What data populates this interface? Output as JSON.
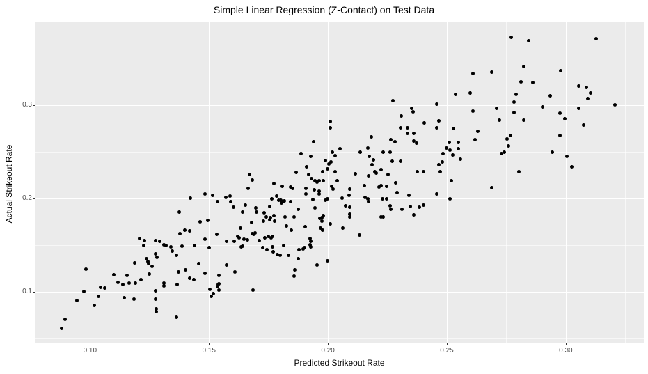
{
  "title": "Simple Linear Regression (Z-Contact) on Test Data",
  "colors": {
    "panel_background": "#EBEBEB",
    "grid_major": "#FFFFFF",
    "grid_minor": "#FFFFFF",
    "point": "#000000",
    "tick_text": "#4D4D4D",
    "axis_text": "#000000"
  },
  "chart_data": {
    "type": "scatter",
    "title": "Simple Linear Regression (Z-Contact) on Test Data",
    "xlabel": "Predicted Strikeout Rate",
    "ylabel": "Actual Strikeout Rate",
    "xlim": [
      0.0768,
      0.3328
    ],
    "ylim": [
      0.0448,
      0.3888
    ],
    "grid": true,
    "legend_position": "none",
    "x_major_ticks": [
      0.1,
      0.15,
      0.2,
      0.25,
      0.3
    ],
    "x_tick_labels": [
      "0.10",
      "0.15",
      "0.20",
      "0.25",
      "0.30"
    ],
    "x_minor_ticks": [
      0.125,
      0.175,
      0.225,
      0.275,
      0.325
    ],
    "y_major_ticks": [
      0.1,
      0.2,
      0.3
    ],
    "y_tick_labels": [
      "0.1",
      "0.2",
      "0.3"
    ],
    "y_minor_ticks": [
      0.05,
      0.15,
      0.25,
      0.35
    ],
    "points": [
      [
        0.0882,
        0.0612
      ],
      [
        0.0894,
        0.0707
      ],
      [
        0.0946,
        0.0905
      ],
      [
        0.0975,
        0.1005
      ],
      [
        0.0982,
        0.1246
      ],
      [
        0.1018,
        0.0851
      ],
      [
        0.1035,
        0.0948
      ],
      [
        0.1045,
        0.1047
      ],
      [
        0.1063,
        0.1043
      ],
      [
        0.1099,
        0.1184
      ],
      [
        0.1118,
        0.1099
      ],
      [
        0.1138,
        0.108
      ],
      [
        0.1145,
        0.0938
      ],
      [
        0.1155,
        0.1174
      ],
      [
        0.1164,
        0.1092
      ],
      [
        0.1187,
        0.1311
      ],
      [
        0.119,
        0.1092
      ],
      [
        0.1185,
        0.0925
      ],
      [
        0.1209,
        0.1572
      ],
      [
        0.1213,
        0.1129
      ],
      [
        0.1229,
        0.1547
      ],
      [
        0.1226,
        0.1497
      ],
      [
        0.1238,
        0.1358
      ],
      [
        0.1242,
        0.1328
      ],
      [
        0.1247,
        0.1299
      ],
      [
        0.1248,
        0.1192
      ],
      [
        0.126,
        0.1274
      ],
      [
        0.1277,
        0.1545
      ],
      [
        0.1277,
        0.141
      ],
      [
        0.1281,
        0.1373
      ],
      [
        0.1294,
        0.154
      ],
      [
        0.131,
        0.1507
      ],
      [
        0.131,
        0.1092
      ],
      [
        0.131,
        0.106
      ],
      [
        0.1277,
        0.101
      ],
      [
        0.1277,
        0.0925
      ],
      [
        0.1279,
        0.0819
      ],
      [
        0.1279,
        0.0786
      ],
      [
        0.132,
        0.1497
      ],
      [
        0.1341,
        0.1482
      ],
      [
        0.1346,
        0.1433
      ],
      [
        0.1362,
        0.1395
      ],
      [
        0.1365,
        0.108
      ],
      [
        0.1362,
        0.0731
      ],
      [
        0.1375,
        0.1856
      ],
      [
        0.1379,
        0.1627
      ],
      [
        0.1372,
        0.1216
      ],
      [
        0.1387,
        0.149
      ],
      [
        0.1398,
        0.1664
      ],
      [
        0.1401,
        0.1236
      ],
      [
        0.1421,
        0.2007
      ],
      [
        0.1418,
        0.1651
      ],
      [
        0.1419,
        0.1147
      ],
      [
        0.1437,
        0.1134
      ],
      [
        0.144,
        0.1497
      ],
      [
        0.1457,
        0.1303
      ],
      [
        0.1463,
        0.1751
      ],
      [
        0.1484,
        0.2045
      ],
      [
        0.1482,
        0.1565
      ],
      [
        0.1484,
        0.1196
      ],
      [
        0.1496,
        0.1763
      ],
      [
        0.1502,
        0.1472
      ],
      [
        0.1504,
        0.103
      ],
      [
        0.1515,
        0.2032
      ],
      [
        0.1511,
        0.0948
      ],
      [
        0.1518,
        0.098
      ],
      [
        0.1535,
        0.197
      ],
      [
        0.1533,
        0.1619
      ],
      [
        0.1536,
        0.1054
      ],
      [
        0.1541,
        0.1084
      ],
      [
        0.1541,
        0.1179
      ],
      [
        0.1538,
        0.1075
      ],
      [
        0.1543,
        0.1022
      ],
      [
        0.157,
        0.2013
      ],
      [
        0.1574,
        0.154
      ],
      [
        0.1575,
        0.1291
      ],
      [
        0.159,
        0.2025
      ],
      [
        0.1593,
        0.1968
      ],
      [
        0.1603,
        0.1905
      ],
      [
        0.1606,
        0.154
      ],
      [
        0.1609,
        0.1216
      ],
      [
        0.1621,
        0.1597
      ],
      [
        0.1626,
        0.1577
      ],
      [
        0.1633,
        0.1681
      ],
      [
        0.1635,
        0.1482
      ],
      [
        0.164,
        0.1851
      ],
      [
        0.164,
        0.149
      ],
      [
        0.1664,
        0.2112
      ],
      [
        0.1684,
        0.1017
      ],
      [
        0.1652,
        0.193
      ],
      [
        0.1648,
        0.1565
      ],
      [
        0.1661,
        0.1557
      ],
      [
        0.1679,
        0.1746
      ],
      [
        0.1681,
        0.1627
      ],
      [
        0.1689,
        0.1614
      ],
      [
        0.1694,
        0.1632
      ],
      [
        0.1696,
        0.1901
      ],
      [
        0.1701,
        0.1856
      ],
      [
        0.1713,
        0.1552
      ],
      [
        0.1726,
        0.1472
      ],
      [
        0.173,
        0.1756
      ],
      [
        0.1733,
        0.1846
      ],
      [
        0.1736,
        0.1582
      ],
      [
        0.1745,
        0.1453
      ],
      [
        0.1749,
        0.159
      ],
      [
        0.1755,
        0.1913
      ],
      [
        0.1755,
        0.1771
      ],
      [
        0.1759,
        0.1796
      ],
      [
        0.1762,
        0.1577
      ],
      [
        0.1767,
        0.159
      ],
      [
        0.1765,
        0.2
      ],
      [
        0.1767,
        0.1482
      ],
      [
        0.1769,
        0.1427
      ],
      [
        0.1772,
        0.1821
      ],
      [
        0.1777,
        0.1756
      ],
      [
        0.1784,
        0.2025
      ],
      [
        0.1788,
        0.1397
      ],
      [
        0.1794,
        0.1985
      ],
      [
        0.1801,
        0.198
      ],
      [
        0.1806,
        0.1955
      ],
      [
        0.1811,
        0.197
      ],
      [
        0.1816,
        0.1976
      ],
      [
        0.1798,
        0.139
      ],
      [
        0.1813,
        0.1497
      ],
      [
        0.182,
        0.1806
      ],
      [
        0.1827,
        0.1707
      ],
      [
        0.1835,
        0.139
      ],
      [
        0.1843,
        0.197
      ],
      [
        0.1847,
        0.1657
      ],
      [
        0.1857,
        0.1801
      ],
      [
        0.186,
        0.1234
      ],
      [
        0.1857,
        0.1166
      ],
      [
        0.1876,
        0.1888
      ],
      [
        0.1876,
        0.1358
      ],
      [
        0.1879,
        0.1448
      ],
      [
        0.1896,
        0.1457
      ],
      [
        0.1903,
        0.1472
      ],
      [
        0.1906,
        0.1701
      ],
      [
        0.1908,
        0.2045
      ],
      [
        0.1925,
        0.1572
      ],
      [
        0.1928,
        0.154
      ],
      [
        0.1925,
        0.1507
      ],
      [
        0.1928,
        0.1478
      ],
      [
        0.1938,
        0.1988
      ],
      [
        0.1947,
        0.1901
      ],
      [
        0.1954,
        0.1291
      ],
      [
        0.1962,
        0.2045
      ],
      [
        0.1967,
        0.1789
      ],
      [
        0.1974,
        0.1796
      ],
      [
        0.197,
        0.1681
      ],
      [
        0.1977,
        0.1664
      ],
      [
        0.1974,
        0.1756
      ],
      [
        0.1989,
        0.198
      ],
      [
        0.1999,
        0.2
      ],
      [
        0.1999,
        0.1333
      ],
      [
        0.2009,
        0.1731
      ],
      [
        0.206,
        0.2005
      ],
      [
        0.2062,
        0.1681
      ],
      [
        0.2074,
        0.192
      ],
      [
        0.2089,
        0.2037
      ],
      [
        0.2091,
        0.1905
      ],
      [
        0.2091,
        0.183
      ],
      [
        0.2091,
        0.1801
      ],
      [
        0.2133,
        0.1607
      ],
      [
        0.2157,
        0.2013
      ],
      [
        0.2169,
        0.1995
      ],
      [
        0.2172,
        0.197
      ],
      [
        0.223,
        0.2
      ],
      [
        0.2223,
        0.1806
      ],
      [
        0.2233,
        0.1801
      ],
      [
        0.2247,
        0.1995
      ],
      [
        0.2263,
        0.192
      ],
      [
        0.2264,
        0.1888
      ],
      [
        0.2292,
        0.2062
      ],
      [
        0.2311,
        0.1888
      ],
      [
        0.234,
        0.2037
      ],
      [
        0.2345,
        0.1913
      ],
      [
        0.236,
        0.1826
      ],
      [
        0.2384,
        0.1905
      ],
      [
        0.2403,
        0.193
      ],
      [
        0.2458,
        0.2045
      ],
      [
        0.2513,
        0.2
      ],
      [
        0.1843,
        0.2125
      ],
      [
        0.1909,
        0.2112
      ],
      [
        0.2016,
        0.213
      ],
      [
        0.2021,
        0.2104
      ],
      [
        0.2091,
        0.2104
      ],
      [
        0.2152,
        0.2137
      ],
      [
        0.2214,
        0.2125
      ],
      [
        0.2223,
        0.2137
      ],
      [
        0.2247,
        0.213
      ],
      [
        0.1851,
        0.2107
      ],
      [
        0.1944,
        0.209
      ],
      [
        0.1963,
        0.2082
      ],
      [
        0.1982,
        0.1816
      ],
      [
        0.1742,
        0.1806
      ],
      [
        0.2689,
        0.2119
      ],
      [
        0.1672,
        0.2261
      ],
      [
        0.1683,
        0.2199
      ],
      [
        0.1772,
        0.2162
      ],
      [
        0.1807,
        0.2134
      ],
      [
        0.1867,
        0.2281
      ],
      [
        0.1888,
        0.2485
      ],
      [
        0.1911,
        0.2341
      ],
      [
        0.192,
        0.2261
      ],
      [
        0.1928,
        0.2453
      ],
      [
        0.1931,
        0.2216
      ],
      [
        0.1941,
        0.261
      ],
      [
        0.1947,
        0.2187
      ],
      [
        0.1954,
        0.2174
      ],
      [
        0.1962,
        0.2192
      ],
      [
        0.1977,
        0.2291
      ],
      [
        0.1982,
        0.2187
      ],
      [
        0.1989,
        0.2405
      ],
      [
        0.1999,
        0.2319
      ],
      [
        0.2003,
        0.2366
      ],
      [
        0.2009,
        0.2828
      ],
      [
        0.2011,
        0.2754
      ],
      [
        0.2013,
        0.2393
      ],
      [
        0.2019,
        0.2493
      ],
      [
        0.2029,
        0.2461
      ],
      [
        0.203,
        0.2286
      ],
      [
        0.2038,
        0.2192
      ],
      [
        0.2052,
        0.2535
      ],
      [
        0.2116,
        0.2266
      ],
      [
        0.2135,
        0.2498
      ],
      [
        0.2167,
        0.254
      ],
      [
        0.2172,
        0.2241
      ],
      [
        0.2175,
        0.2448
      ],
      [
        0.2182,
        0.2659
      ],
      [
        0.2186,
        0.236
      ],
      [
        0.2191,
        0.2415
      ],
      [
        0.2198,
        0.2286
      ],
      [
        0.2204,
        0.2269
      ],
      [
        0.2223,
        0.2311
      ],
      [
        0.2233,
        0.2493
      ],
      [
        0.2252,
        0.2261
      ],
      [
        0.2263,
        0.2498
      ],
      [
        0.2264,
        0.2629
      ],
      [
        0.2269,
        0.2398
      ],
      [
        0.2272,
        0.3045
      ],
      [
        0.2282,
        0.261
      ],
      [
        0.2284,
        0.2167
      ],
      [
        0.2304,
        0.2398
      ],
      [
        0.2307,
        0.2888
      ],
      [
        0.2304,
        0.2759
      ],
      [
        0.2335,
        0.2754
      ],
      [
        0.2335,
        0.2696
      ],
      [
        0.2352,
        0.297
      ],
      [
        0.2357,
        0.2928
      ],
      [
        0.236,
        0.2696
      ],
      [
        0.2362,
        0.2614
      ],
      [
        0.2374,
        0.2597
      ],
      [
        0.2377,
        0.2291
      ],
      [
        0.2403,
        0.2291
      ],
      [
        0.2406,
        0.2808
      ],
      [
        0.2458,
        0.3013
      ],
      [
        0.2465,
        0.2834
      ],
      [
        0.2458,
        0.2754
      ],
      [
        0.2467,
        0.236
      ],
      [
        0.2471,
        0.2291
      ],
      [
        0.2481,
        0.239
      ],
      [
        0.2484,
        0.248
      ],
      [
        0.2498,
        0.254
      ],
      [
        0.2511,
        0.2604
      ],
      [
        0.2513,
        0.2515
      ],
      [
        0.277,
        0.3729
      ],
      [
        0.2845,
        0.3692
      ],
      [
        0.3128,
        0.3709
      ],
      [
        0.2823,
        0.3416
      ],
      [
        0.2611,
        0.3336
      ],
      [
        0.269,
        0.3351
      ],
      [
        0.2977,
        0.3368
      ],
      [
        0.2813,
        0.3251
      ],
      [
        0.2861,
        0.3239
      ],
      [
        0.3054,
        0.3207
      ],
      [
        0.3087,
        0.3187
      ],
      [
        0.2536,
        0.3119
      ],
      [
        0.2598,
        0.3127
      ],
      [
        0.3105,
        0.3132
      ],
      [
        0.2791,
        0.3114
      ],
      [
        0.2935,
        0.3099
      ],
      [
        0.3093,
        0.307
      ],
      [
        0.2781,
        0.3032
      ],
      [
        0.3206,
        0.3002
      ],
      [
        0.2611,
        0.2933
      ],
      [
        0.271,
        0.2963
      ],
      [
        0.2781,
        0.2925
      ],
      [
        0.2901,
        0.2983
      ],
      [
        0.3054,
        0.2963
      ],
      [
        0.2974,
        0.2916
      ],
      [
        0.2996,
        0.2853
      ],
      [
        0.2721,
        0.2838
      ],
      [
        0.2823,
        0.2838
      ],
      [
        0.3076,
        0.2784
      ],
      [
        0.2528,
        0.2752
      ],
      [
        0.263,
        0.2722
      ],
      [
        0.2547,
        0.2602
      ],
      [
        0.2618,
        0.2629
      ],
      [
        0.2752,
        0.2639
      ],
      [
        0.2767,
        0.2672
      ],
      [
        0.2974,
        0.2672
      ],
      [
        0.2758,
        0.256
      ],
      [
        0.2547,
        0.2535
      ],
      [
        0.273,
        0.248
      ],
      [
        0.274,
        0.2498
      ],
      [
        0.2942,
        0.2498
      ],
      [
        0.2526,
        0.2465
      ],
      [
        0.2557,
        0.2418
      ],
      [
        0.3006,
        0.2455
      ],
      [
        0.3025,
        0.2341
      ],
      [
        0.2803,
        0.2291
      ],
      [
        0.2518,
        0.2187
      ]
    ]
  }
}
